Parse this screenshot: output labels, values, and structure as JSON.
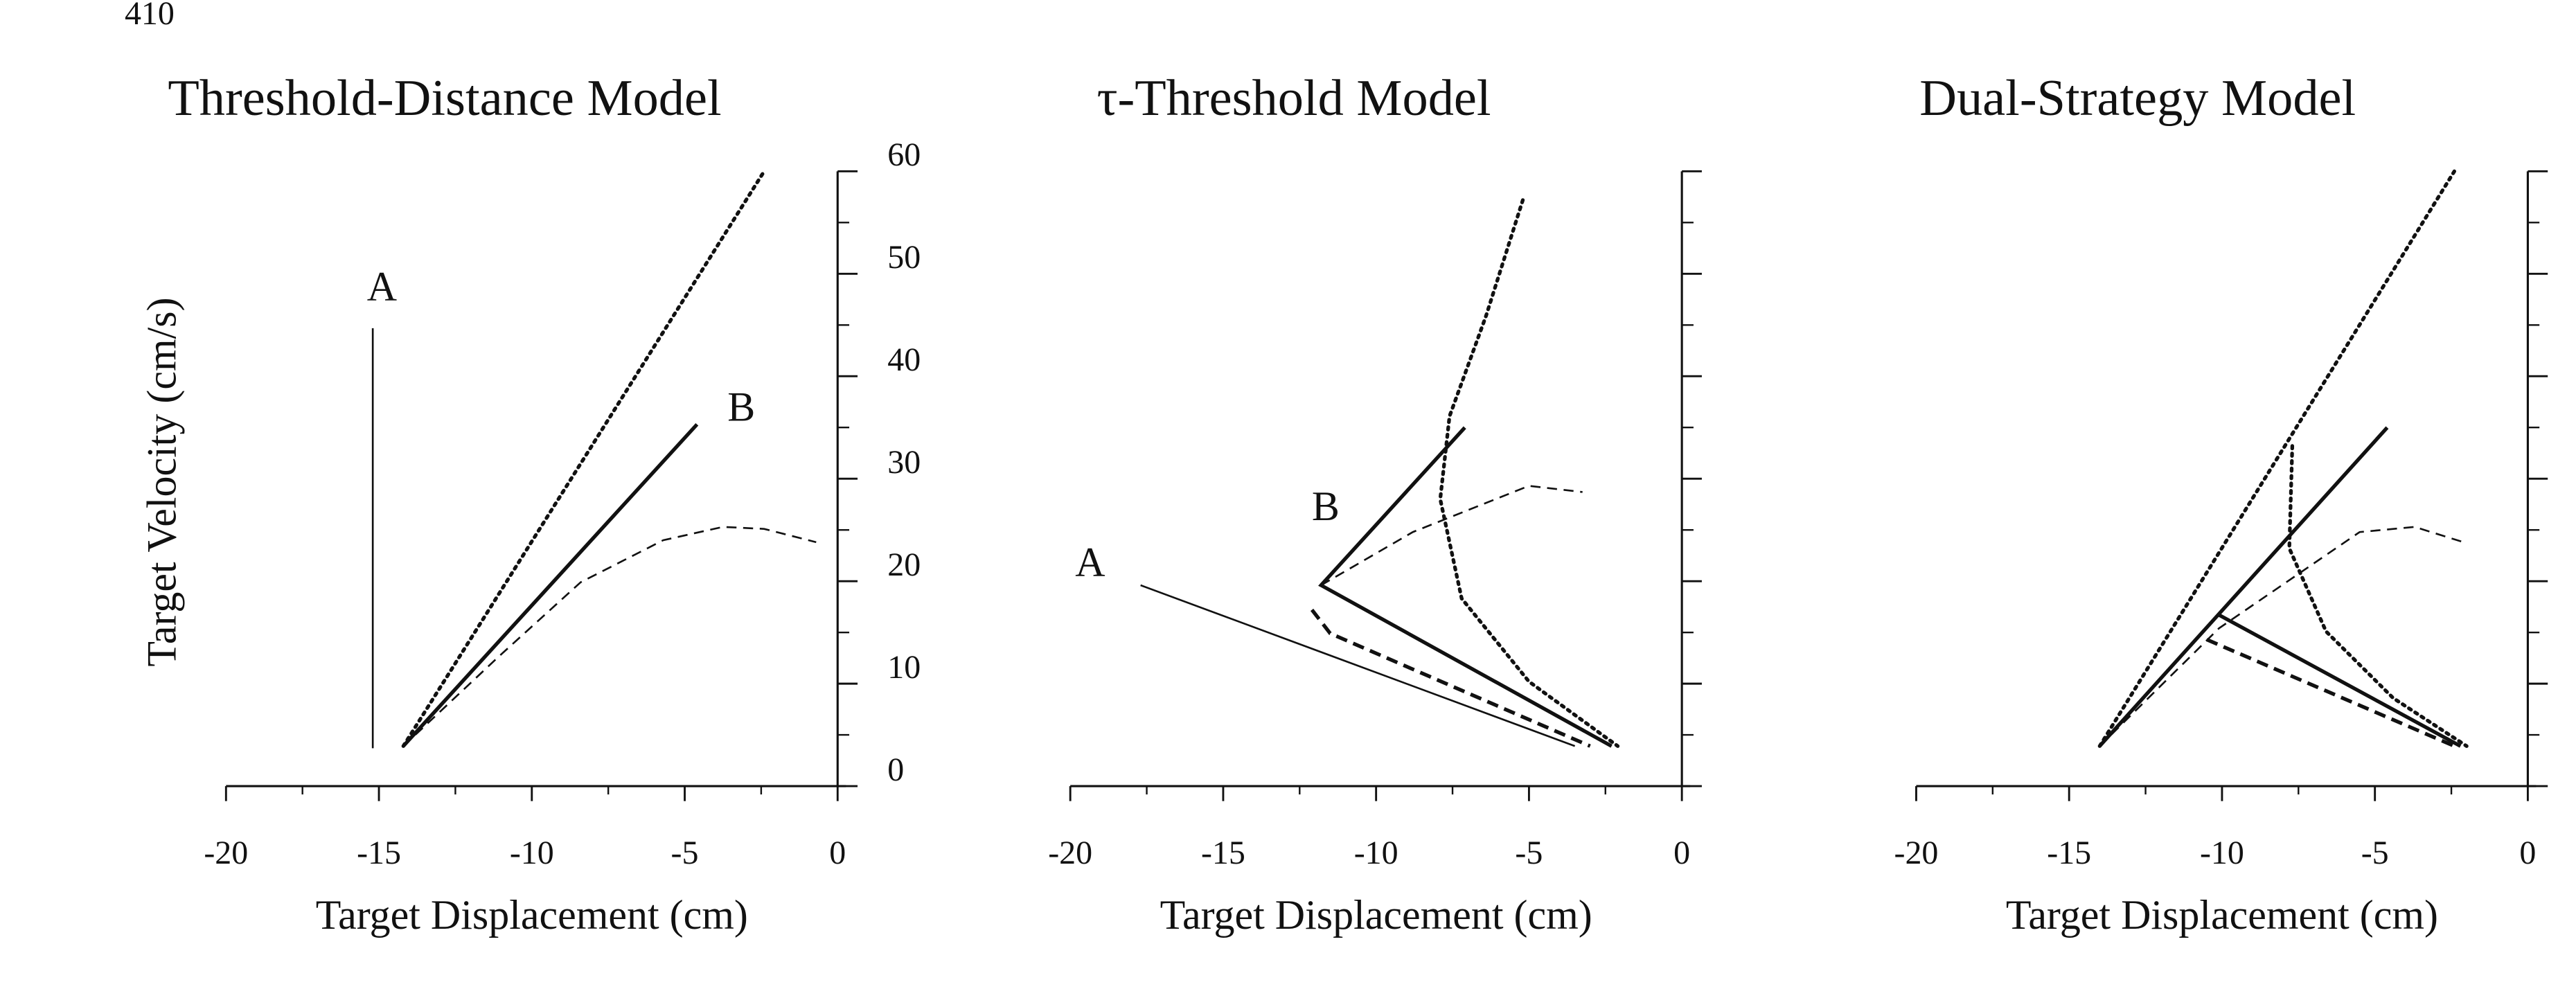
{
  "page_number": "410",
  "chart_data": [
    {
      "type": "line",
      "title": "Threshold-Distance Model",
      "xlabel": "Target Displacement (cm)",
      "ylabel": "Target Velocity (cm/s)",
      "xlim": [
        -20,
        0
      ],
      "xticks": [
        -20,
        -15,
        -10,
        -5,
        0
      ],
      "xminor": [
        -17.5,
        -12.5,
        -7.5,
        -2.5
      ],
      "ylim": [
        0,
        60
      ],
      "yticks": [
        0,
        10,
        20,
        30,
        40,
        50,
        60
      ],
      "yminor": [
        5,
        15,
        25,
        35,
        45,
        55
      ],
      "ytick_labels": true,
      "yaxis_side": "right",
      "series": [
        {
          "style": "solid",
          "width": 1,
          "x": [
            -15.2,
            -15.2
          ],
          "values": [
            3.7,
            44.7
          ]
        },
        {
          "style": "solid",
          "width": 2,
          "x": [
            -14.2,
            -4.6
          ],
          "values": [
            3.9,
            35.3
          ]
        },
        {
          "style": "dotted",
          "width": 2,
          "x": [
            -14.2,
            -2.4
          ],
          "values": [
            3.9,
            60
          ]
        },
        {
          "style": "dashed",
          "width": 1,
          "x": [
            -14.2,
            -11.1,
            -8.4,
            -5.7,
            -3.75,
            -2.4,
            -0.7
          ],
          "values": [
            3.9,
            12.6,
            19.9,
            24,
            25.3,
            25.1,
            23.8
          ]
        }
      ],
      "annotations": [
        {
          "text": "A",
          "x": -14.9,
          "y": 48.3
        },
        {
          "text": "B",
          "x": -3.15,
          "y": 36.6
        }
      ]
    },
    {
      "type": "line",
      "title": "τ-Threshold Model",
      "xlabel": "Target Displacement (cm)",
      "xlim": [
        -20,
        0
      ],
      "xticks": [
        -20,
        -15,
        -10,
        -5,
        0
      ],
      "xminor": [
        -17.5,
        -12.5,
        -7.5,
        -2.5
      ],
      "ylim": [
        0,
        60
      ],
      "yticks": [
        0,
        10,
        20,
        30,
        40,
        50,
        60
      ],
      "yminor": [
        5,
        15,
        25,
        35,
        45,
        55
      ],
      "ytick_labels": false,
      "yaxis_side": "right",
      "series": [
        {
          "style": "solid",
          "width": 1,
          "x": [
            -17.7,
            -3.5
          ],
          "values": [
            19.6,
            3.9
          ]
        },
        {
          "style": "solid",
          "width": 2,
          "x": [
            -7.1,
            -11.8,
            -2.3
          ],
          "values": [
            35,
            19.6,
            3.9
          ]
        },
        {
          "style": "dashed",
          "width": 2,
          "x": [
            -12.1,
            -11.5,
            -3.0
          ],
          "values": [
            17.2,
            14.9,
            3.9
          ]
        },
        {
          "style": "dashed",
          "width": 1,
          "x": [
            -11.8,
            -8.8,
            -5.0,
            -3.25
          ],
          "values": [
            19.6,
            24.8,
            29.3,
            28.7
          ]
        },
        {
          "style": "dotted",
          "width": 2,
          "x": [
            -5.2,
            -6.4,
            -7.6,
            -7.9,
            -7.2,
            -5.0,
            -2.1
          ],
          "values": [
            57.2,
            45.9,
            36.1,
            28,
            18.3,
            10.2,
            3.9
          ]
        }
      ],
      "annotations": [
        {
          "text": "A",
          "x": -19.35,
          "y": 21.4
        },
        {
          "text": "B",
          "x": -11.65,
          "y": 26.9
        }
      ]
    },
    {
      "type": "line",
      "title": "Dual-Strategy Model",
      "xlabel": "Target Displacement (cm)",
      "xlim": [
        -20,
        0
      ],
      "xticks": [
        -20,
        -15,
        -10,
        -5,
        0
      ],
      "xminor": [
        -17.5,
        -12.5,
        -7.5,
        -2.5
      ],
      "ylim": [
        0,
        60
      ],
      "yticks": [
        0,
        10,
        20,
        30,
        40,
        50,
        60
      ],
      "yminor": [
        5,
        15,
        25,
        35,
        45,
        55
      ],
      "ytick_labels": false,
      "yaxis_side": "right",
      "series": [
        {
          "style": "dotted",
          "width": 2,
          "x": [
            -14.0,
            -2.4
          ],
          "values": [
            3.9,
            60
          ]
        },
        {
          "style": "solid",
          "width": 2,
          "x": [
            -14.0,
            -4.6
          ],
          "values": [
            3.9,
            35
          ]
        },
        {
          "style": "solid",
          "width": 2,
          "x": [
            -10.1,
            -2.2
          ],
          "values": [
            16.7,
            3.9
          ]
        },
        {
          "style": "dashed",
          "width": 2,
          "x": [
            -10.5,
            -2.4
          ],
          "values": [
            14.3,
            3.9
          ]
        },
        {
          "style": "dashed",
          "width": 1,
          "x": [
            -14.0,
            -10.1,
            -5.5,
            -3.7,
            -2.1
          ],
          "values": [
            3.9,
            15.4,
            24.8,
            25.3,
            23.8
          ]
        },
        {
          "style": "dotted",
          "width": 2,
          "x": [
            -7.7,
            -7.8,
            -6.6,
            -4.4,
            -2.0
          ],
          "values": [
            33.2,
            23.2,
            15.1,
            8.6,
            3.9
          ]
        }
      ],
      "annotations": []
    }
  ]
}
